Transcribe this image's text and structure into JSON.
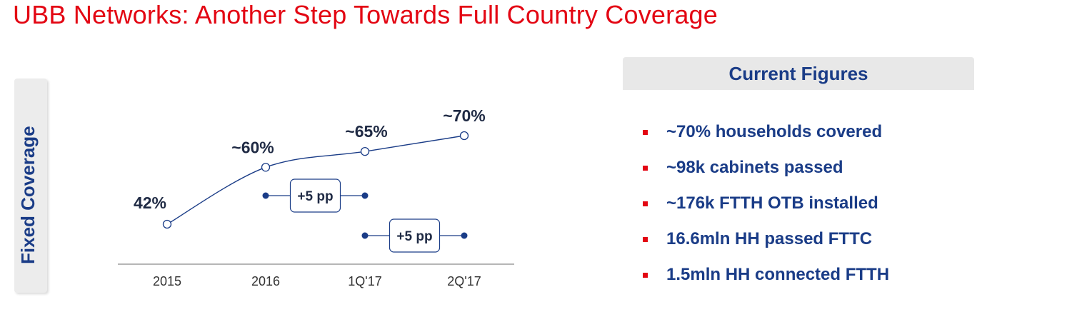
{
  "title": "UBB Networks: Another Step Towards Full Country Coverage",
  "side_label": "Fixed Coverage",
  "panel": {
    "title": "Current Figures",
    "items": [
      "~70% households covered",
      "~98k cabinets passed",
      "~176k FTTH OTB installed",
      "16.6mln HH passed FTTC",
      "1.5mln HH connected FTTH"
    ]
  },
  "colors": {
    "accent": "#e30613",
    "navy": "#1a3c87",
    "line": "#1a3c87",
    "dark_text": "#1f2a44"
  },
  "chart_data": {
    "type": "line",
    "categories": [
      "2015",
      "2016",
      "1Q'17",
      "2Q'17"
    ],
    "values": [
      42,
      60,
      65,
      70
    ],
    "data_labels": [
      "42%",
      "~60%",
      "~65%",
      "~70%"
    ],
    "ylabel": "Fixed Coverage",
    "annotations": [
      {
        "label": "+5 pp",
        "from": "2016",
        "to": "1Q'17"
      },
      {
        "label": "+5 pp",
        "from": "1Q'17",
        "to": "2Q'17"
      }
    ]
  }
}
